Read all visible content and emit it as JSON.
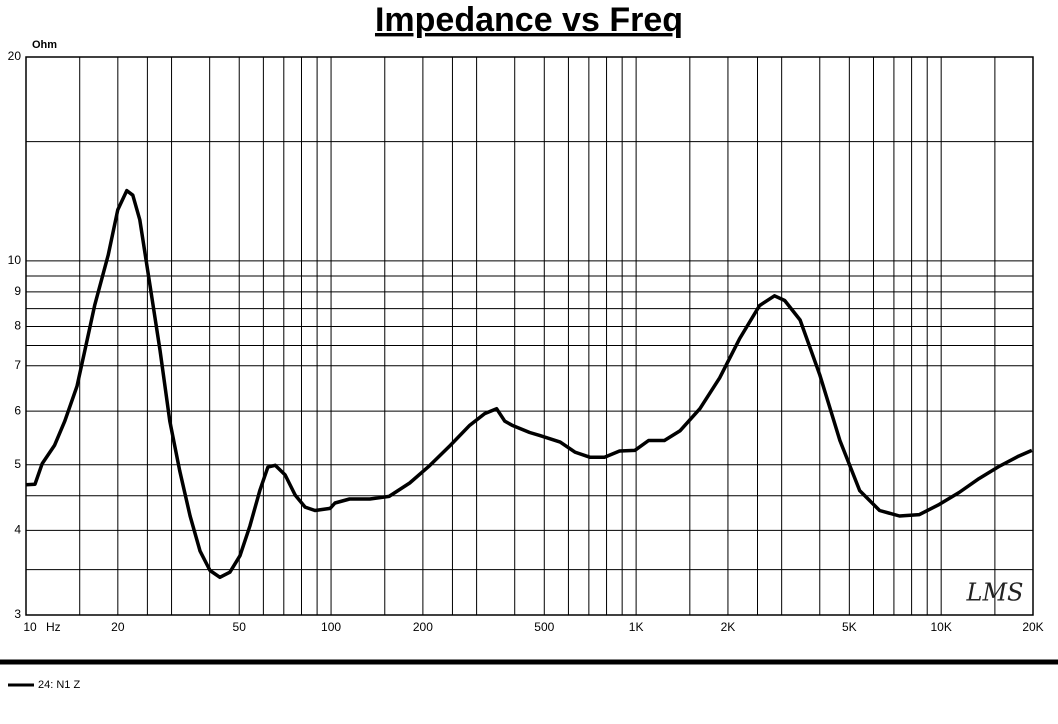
{
  "chart_data": {
    "type": "line",
    "title": "Impedance vs Freq",
    "ylabel": "Ohm",
    "xlabel": "Hz",
    "annotation": "LMS",
    "xlog": true,
    "ylog": true,
    "grid": true,
    "legend": "bottom-left",
    "xlim": [
      10,
      20000
    ],
    "ylim": [
      3,
      20
    ],
    "xticks": [
      10,
      20,
      50,
      100,
      200,
      500,
      {
        "value": 1000,
        "label": "1K"
      },
      {
        "value": 2000,
        "label": "2K"
      },
      {
        "value": 5000,
        "label": "5K"
      },
      {
        "value": 10000,
        "label": "10K"
      },
      {
        "value": 20000,
        "label": "20K"
      }
    ],
    "xminor": [
      15,
      25,
      30,
      40,
      60,
      70,
      80,
      90,
      150,
      250,
      300,
      400,
      600,
      700,
      800,
      900,
      1500,
      2500,
      3000,
      4000,
      6000,
      7000,
      8000,
      9000,
      15000
    ],
    "yticks": [
      3,
      4,
      5,
      6,
      7,
      8,
      9,
      10,
      20
    ],
    "yminor": [
      3.5,
      4.5,
      7.5,
      8.5,
      9.5,
      15
    ],
    "x": [
      10,
      10.7,
      11.3,
      12.4,
      13.4,
      14.7,
      15.6,
      16.8,
      18.6,
      20,
      21.4,
      22.4,
      23.6,
      25.5,
      27.5,
      29.6,
      31.9,
      34.5,
      37.2,
      40.1,
      43.2,
      46.6,
      50.3,
      54.2,
      58.4,
      62.1,
      65.6,
      70.7,
      76.3,
      82.2,
      88.6,
      99.3,
      103,
      115,
      134,
      155,
      181,
      211,
      246,
      285,
      319,
      349,
      371,
      392,
      448,
      484,
      564,
      630,
      705,
      788,
      883,
      990,
      1099,
      1238,
      1392,
      1618,
      1880,
      2183,
      2538,
      2843,
      3070,
      3447,
      4005,
      4655,
      5408,
      6284,
      7301,
      8483,
      9857,
      11450,
      13300,
      15460,
      17960,
      19830
    ],
    "series": [
      {
        "name": "24: N1 Z",
        "color": "#000000",
        "values": [
          4.67,
          4.68,
          5.02,
          5.34,
          5.8,
          6.53,
          7.38,
          8.6,
          10.2,
          11.9,
          12.7,
          12.5,
          11.5,
          9.2,
          7.38,
          5.8,
          4.9,
          4.2,
          3.73,
          3.49,
          3.41,
          3.47,
          3.67,
          4.06,
          4.58,
          4.96,
          4.99,
          4.83,
          4.51,
          4.33,
          4.28,
          4.31,
          4.39,
          4.45,
          4.45,
          4.49,
          4.7,
          4.99,
          5.34,
          5.72,
          5.95,
          6.05,
          5.8,
          5.72,
          5.58,
          5.52,
          5.4,
          5.22,
          5.13,
          5.13,
          5.24,
          5.25,
          5.43,
          5.43,
          5.61,
          6.05,
          6.72,
          7.67,
          8.59,
          8.88,
          8.74,
          8.18,
          6.78,
          5.43,
          4.58,
          4.28,
          4.2,
          4.22,
          4.37,
          4.55,
          4.77,
          4.97,
          5.15,
          5.25
        ]
      }
    ]
  }
}
